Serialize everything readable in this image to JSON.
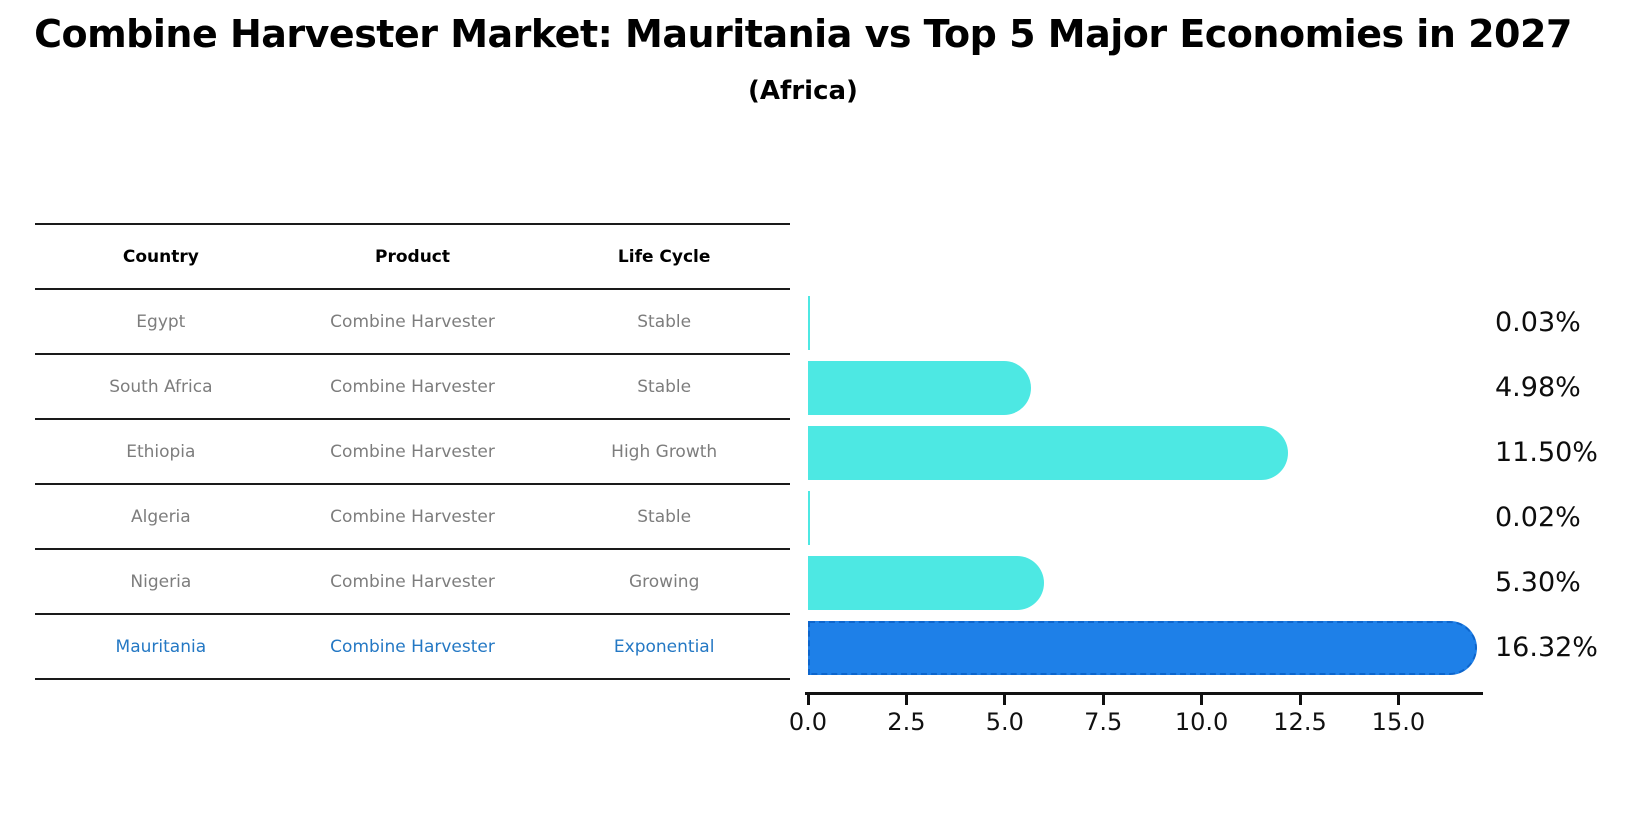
{
  "header": {
    "title": "Combine Harvester Market: Mauritania vs Top 5 Major Economies in 2027",
    "subtitle": "(Africa)"
  },
  "table": {
    "columns": [
      "Country",
      "Product",
      "Life Cycle"
    ],
    "rows": [
      {
        "country": "Egypt",
        "product": "Combine Harvester",
        "life_cycle": "Stable",
        "highlight": false
      },
      {
        "country": "South Africa",
        "product": "Combine Harvester",
        "life_cycle": "Stable",
        "highlight": false
      },
      {
        "country": "Ethiopia",
        "product": "Combine Harvester",
        "life_cycle": "High Growth",
        "highlight": false
      },
      {
        "country": "Algeria",
        "product": "Combine Harvester",
        "life_cycle": "Stable",
        "highlight": false
      },
      {
        "country": "Nigeria",
        "product": "Combine Harvester",
        "life_cycle": "Growing",
        "highlight": false
      },
      {
        "country": "Mauritania",
        "product": "Combine Harvester",
        "life_cycle": "Exponential",
        "highlight": true
      }
    ],
    "text_color": "#7d7d7d",
    "highlight_text_color": "#2478C4"
  },
  "chart_data": {
    "type": "bar",
    "orientation": "horizontal",
    "title": "Combine Harvester Market: Mauritania vs Top 5 Major Economies in 2027 (Africa)",
    "categories": [
      "Egypt",
      "South Africa",
      "Ethiopia",
      "Algeria",
      "Nigeria",
      "Mauritania"
    ],
    "values": [
      0.03,
      4.98,
      11.5,
      0.02,
      5.3,
      16.32
    ],
    "value_labels": [
      "0.03%",
      "4.98%",
      "11.50%",
      "0.02%",
      "5.30%",
      "16.32%"
    ],
    "xticks": [
      0.0,
      2.5,
      5.0,
      7.5,
      10.0,
      12.5,
      15.0
    ],
    "xtick_labels": [
      "0.0",
      "2.5",
      "5.0",
      "7.5",
      "10.0",
      "12.5",
      "15.0"
    ],
    "xlim": [
      0,
      17.2
    ],
    "grid": false,
    "legend": false,
    "bar_color": "#4DE8E3",
    "highlight_bar_color": "#1E80E8",
    "highlight_border_color": "#0D65CC",
    "highlight_index": 5
  }
}
